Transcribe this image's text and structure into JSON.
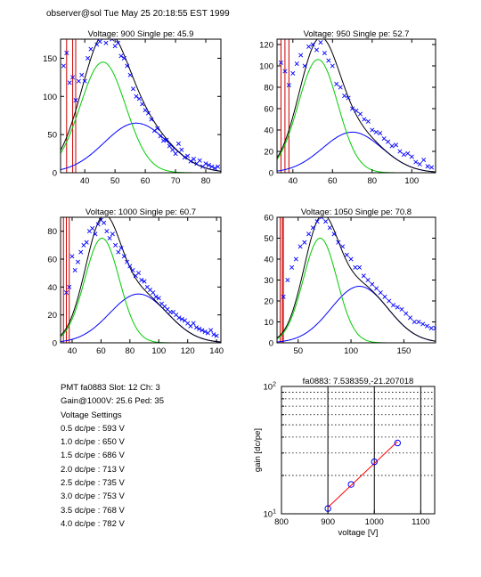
{
  "header": "observer@sol  Tue May 25 20:18:55 EST 1999",
  "info": {
    "pmt_line": "PMT fa0883 Slot: 12 Ch: 3",
    "gain_line": "Gain@1000V: 25.6 Ped: 35",
    "settings_title": "Voltage Settings",
    "settings": [
      "0.5 dc/pe : 593 V",
      "1.0 dc/pe : 650 V",
      "1.5 dc/pe : 686 V",
      "2.0 dc/pe : 713 V",
      "2.5 dc/pe : 735 V",
      "3.0 dc/pe : 753 V",
      "3.5 dc/pe : 768 V",
      "4.0 dc/pe : 782 V"
    ]
  },
  "colors": {
    "data_points": "#0000ff",
    "total_fit": "#000000",
    "single_pe": "#00cc00",
    "multi_pe": "#0000ff",
    "pedestal": "#cc0000",
    "gain_fit_line": "#ff0000",
    "gain_points": "#0000ff"
  },
  "chart_data": [
    {
      "type": "scatter",
      "title": "Voltage: 900 Single pe: 45.9",
      "xlim": [
        32,
        85
      ],
      "ylim": [
        0,
        175
      ],
      "xticks": [
        40,
        50,
        60,
        70,
        80
      ],
      "yticks": [
        0,
        50,
        100,
        150
      ],
      "pedestal_lines": [
        34,
        36,
        37
      ],
      "fits": {
        "single_pe": {
          "amp": 145,
          "mu": 46,
          "sigma": 7.5
        },
        "multi_pe": {
          "amp": 65,
          "mu": 57,
          "sigma": 10.6
        }
      },
      "x_data": [
        33,
        34,
        35,
        36,
        37,
        38,
        39,
        40,
        41,
        42,
        43,
        44,
        45,
        46,
        47,
        48,
        49,
        50,
        51,
        52,
        53,
        54,
        55,
        56,
        57,
        58,
        59,
        60,
        61,
        62,
        63,
        64,
        65,
        66,
        67,
        68,
        69,
        70,
        71,
        72,
        73,
        74,
        75,
        76,
        77,
        78,
        79,
        80,
        81,
        82,
        83,
        84
      ],
      "y_data": [
        140,
        157,
        118,
        125,
        95,
        120,
        128,
        120,
        150,
        162,
        178,
        168,
        172,
        180,
        170,
        182,
        175,
        166,
        170,
        153,
        150,
        140,
        128,
        110,
        100,
        97,
        90,
        82,
        78,
        70,
        55,
        58,
        48,
        42,
        43,
        35,
        30,
        25,
        38,
        30,
        20,
        22,
        15,
        18,
        12,
        16,
        8,
        12,
        10,
        8,
        6,
        8
      ]
    },
    {
      "type": "scatter",
      "title": "Voltage: 950 Single pe: 52.7",
      "xlim": [
        32,
        112
      ],
      "ylim": [
        0,
        125
      ],
      "xticks": [
        40,
        60,
        80,
        100
      ],
      "yticks": [
        0,
        20,
        40,
        60,
        80,
        100,
        120
      ],
      "pedestal_lines": [
        34,
        36,
        38
      ],
      "fits": {
        "single_pe": {
          "amp": 106,
          "mu": 52.7,
          "sigma": 10.0
        },
        "multi_pe": {
          "amp": 38,
          "mu": 70,
          "sigma": 15.0
        }
      },
      "x_data": [
        34,
        36,
        38,
        40,
        42,
        44,
        46,
        48,
        50,
        52,
        54,
        56,
        58,
        60,
        62,
        64,
        66,
        68,
        70,
        72,
        74,
        76,
        78,
        80,
        82,
        84,
        86,
        88,
        90,
        92,
        94,
        96,
        98,
        100,
        102,
        104,
        106,
        108,
        110
      ],
      "y_data": [
        103,
        95,
        82,
        93,
        102,
        110,
        100,
        118,
        120,
        115,
        122,
        112,
        105,
        100,
        83,
        80,
        72,
        70,
        60,
        58,
        55,
        50,
        48,
        40,
        38,
        37,
        32,
        29,
        25,
        26,
        20,
        17,
        18,
        15,
        10,
        8,
        12,
        6,
        5
      ]
    },
    {
      "type": "scatter",
      "title": "Voltage: 1000 Single pe: 60.7",
      "xlim": [
        32,
        143
      ],
      "ylim": [
        0,
        90
      ],
      "xticks": [
        40,
        60,
        80,
        100,
        120,
        140
      ],
      "yticks": [
        0,
        20,
        40,
        60,
        80
      ],
      "pedestal_lines": [
        34,
        36,
        38
      ],
      "fits": {
        "single_pe": {
          "amp": 75,
          "mu": 60.7,
          "sigma": 12.0
        },
        "multi_pe": {
          "amp": 35,
          "mu": 86,
          "sigma": 20.0
        }
      },
      "x_data": [
        36,
        38,
        40,
        42,
        44,
        46,
        48,
        50,
        52,
        54,
        56,
        58,
        60,
        62,
        64,
        66,
        68,
        70,
        72,
        74,
        76,
        78,
        80,
        82,
        84,
        86,
        88,
        90,
        92,
        94,
        96,
        98,
        100,
        102,
        104,
        106,
        108,
        110,
        112,
        114,
        116,
        118,
        120,
        122,
        124,
        126,
        128,
        130,
        132,
        134,
        136,
        138,
        140
      ],
      "y_data": [
        36,
        40,
        62,
        52,
        58,
        65,
        70,
        72,
        80,
        82,
        78,
        85,
        88,
        86,
        80,
        75,
        78,
        70,
        65,
        68,
        62,
        58,
        55,
        52,
        48,
        50,
        45,
        44,
        40,
        38,
        36,
        33,
        32,
        28,
        26,
        24,
        22,
        22,
        20,
        18,
        17,
        16,
        14,
        12,
        14,
        11,
        10,
        9,
        8,
        7,
        9,
        6,
        5
      ]
    },
    {
      "type": "scatter",
      "title": "Voltage: 1050 Single pe: 70.8",
      "xlim": [
        30,
        180
      ],
      "ylim": [
        0,
        60
      ],
      "xticks": [
        50,
        100,
        150
      ],
      "yticks": [
        0,
        10,
        20,
        30,
        40,
        50,
        60
      ],
      "pedestal_lines": [
        33,
        35,
        36
      ],
      "fits": {
        "single_pe": {
          "amp": 50,
          "mu": 70.8,
          "sigma": 16.0
        },
        "multi_pe": {
          "amp": 27,
          "mu": 108,
          "sigma": 27.0
        }
      },
      "x_data": [
        36,
        40,
        44,
        48,
        52,
        56,
        60,
        64,
        68,
        72,
        76,
        80,
        84,
        88,
        92,
        96,
        100,
        104,
        108,
        112,
        116,
        120,
        124,
        128,
        132,
        136,
        140,
        144,
        148,
        152,
        156,
        160,
        164,
        168,
        172,
        176,
        180
      ],
      "y_data": [
        22,
        30,
        36,
        40,
        46,
        48,
        52,
        55,
        58,
        60,
        58,
        55,
        52,
        48,
        46,
        42,
        40,
        36,
        36,
        32,
        30,
        28,
        26,
        24,
        22,
        20,
        18,
        17,
        16,
        14,
        12,
        10,
        10,
        9,
        8,
        7,
        7
      ]
    },
    {
      "type": "scatter",
      "title": "fa0883: 7.538359,-21.207018",
      "xlabel": "voltage [V]",
      "ylabel": "gain [dc/pe]",
      "xlim": [
        800,
        1130
      ],
      "ylog": true,
      "ylim": [
        10,
        100
      ],
      "xticks": [
        800,
        900,
        1000,
        1100
      ],
      "yticks_labeled": [
        "10^1",
        "10^2"
      ],
      "grid_y": [
        20,
        30,
        40,
        50,
        60,
        70,
        80,
        90
      ],
      "grid_x": [
        900,
        1000,
        1100
      ],
      "x": [
        900,
        950,
        1000,
        1050
      ],
      "y": [
        11.0,
        17.0,
        25.6,
        36.0
      ]
    }
  ]
}
